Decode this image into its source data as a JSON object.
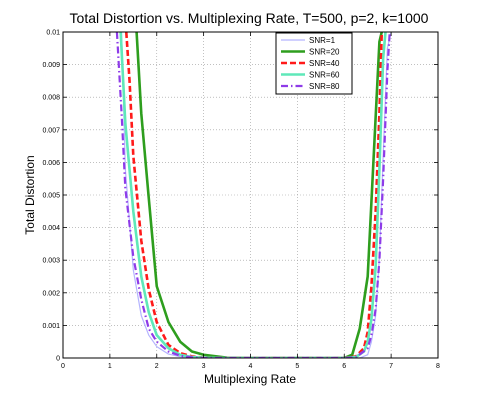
{
  "chart_data": {
    "type": "line",
    "title": "Total Distortion vs. Multiplexing Rate, T=500, p=2, k=1000",
    "xlabel": "Multiplexing Rate",
    "ylabel": "Total Distortion",
    "xlim": [
      0,
      8
    ],
    "ylim": [
      0,
      0.01
    ],
    "xticks": [
      "0",
      "1",
      "2",
      "3",
      "4",
      "5",
      "6",
      "7",
      "8"
    ],
    "yticks": [
      "0",
      "0.001",
      "0.002",
      "0.003",
      "0.004",
      "0.005",
      "0.006",
      "0.007",
      "0.008",
      "0.009",
      "0.01"
    ],
    "grid": true,
    "legend_position": "top-right",
    "series": [
      {
        "name": "SNR=1",
        "color": "#b4b4ff",
        "style": "solid",
        "x": [
          1.25,
          1.33,
          1.5,
          1.67,
          1.83,
          2.0,
          2.25,
          2.5,
          2.75,
          3.0,
          3.5,
          4.0,
          4.5,
          5.0,
          5.5,
          6.0,
          6.17,
          6.33,
          6.5,
          6.58,
          6.67,
          6.75,
          6.83,
          6.92,
          7.0
        ],
        "y": [
          0.01,
          0.0058,
          0.0027,
          0.0013,
          0.0007,
          0.00035,
          0.00012,
          4e-05,
          1e-05,
          0,
          0,
          0,
          0,
          0,
          0,
          0,
          0,
          0,
          0.0001,
          0.0005,
          0.0013,
          0.0031,
          0.0062,
          0.0095,
          0.01
        ]
      },
      {
        "name": "SNR=20",
        "color": "#2e9e1e",
        "style": "solid",
        "x": [
          1.57,
          1.67,
          1.83,
          2.0,
          2.25,
          2.5,
          2.75,
          3.0,
          3.5,
          4.0,
          4.5,
          5.0,
          5.5,
          6.0,
          6.17,
          6.33,
          6.5,
          6.58,
          6.67,
          6.75,
          6.8
        ],
        "y": [
          0.01,
          0.0075,
          0.0049,
          0.0022,
          0.0011,
          0.0005,
          0.0002,
          0.0001,
          1e-05,
          0,
          0,
          0,
          0,
          0,
          0.0001,
          0.0009,
          0.0025,
          0.0048,
          0.0074,
          0.0097,
          0.01
        ]
      },
      {
        "name": "SNR=40",
        "color": "#ff1a1a",
        "style": "dashed",
        "x": [
          1.35,
          1.42,
          1.5,
          1.67,
          1.83,
          2.0,
          2.25,
          2.5,
          2.75,
          3.0,
          3.5,
          4.0,
          4.5,
          5.0,
          5.5,
          6.0,
          6.25,
          6.42,
          6.5,
          6.58,
          6.67,
          6.75,
          6.8
        ],
        "y": [
          0.01,
          0.0085,
          0.0062,
          0.0036,
          0.0021,
          0.0011,
          0.0004,
          0.00015,
          5e-05,
          1e-05,
          0,
          0,
          0,
          0,
          0,
          0,
          5e-05,
          0.0003,
          0.0008,
          0.0022,
          0.0045,
          0.0075,
          0.01
        ]
      },
      {
        "name": "SNR=60",
        "color": "#5fe8b9",
        "style": "solid",
        "x": [
          1.23,
          1.33,
          1.5,
          1.67,
          1.83,
          2.0,
          2.25,
          2.5,
          2.75,
          3.0,
          3.5,
          4.0,
          4.5,
          5.0,
          5.5,
          6.0,
          6.25,
          6.42,
          6.5,
          6.58,
          6.67,
          6.75,
          6.83,
          6.88
        ],
        "y": [
          0.01,
          0.0072,
          0.0045,
          0.0025,
          0.0014,
          0.0007,
          0.0003,
          0.0001,
          3e-05,
          1e-05,
          0,
          0,
          0,
          0,
          0,
          0,
          3e-05,
          0.0002,
          0.0005,
          0.0012,
          0.0028,
          0.0058,
          0.0092,
          0.01
        ]
      },
      {
        "name": "SNR=80",
        "color": "#8e3be8",
        "style": "dashdot",
        "x": [
          1.15,
          1.25,
          1.33,
          1.5,
          1.67,
          1.83,
          2.0,
          2.25,
          2.5,
          2.75,
          3.0,
          3.5,
          4.0,
          4.5,
          5.0,
          5.5,
          6.0,
          6.25,
          6.5,
          6.58,
          6.67,
          6.75,
          6.83,
          6.92,
          6.97
        ],
        "y": [
          0.01,
          0.0075,
          0.0052,
          0.0031,
          0.0018,
          0.0009,
          0.0005,
          0.0002,
          7e-05,
          2e-05,
          0,
          0,
          0,
          0,
          0,
          0,
          0,
          2e-05,
          0.0003,
          0.0007,
          0.0015,
          0.003,
          0.0055,
          0.0088,
          0.01
        ]
      }
    ]
  }
}
